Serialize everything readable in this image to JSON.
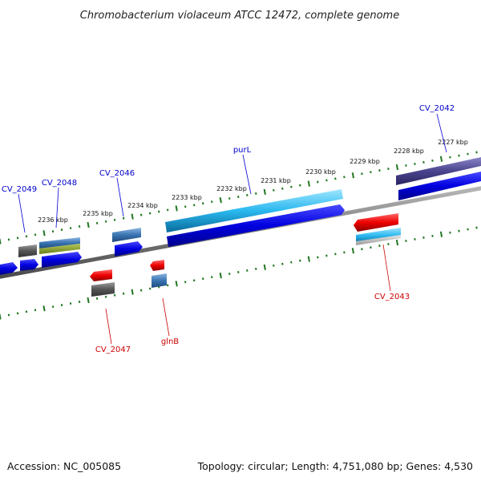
{
  "title": "Chromobacterium violaceum ATCC 12472, complete genome",
  "footer": {
    "accession": "Accession: NC_005085",
    "summary": "Topology: circular; Length: 4,751,080 bp; Genes: 4,530"
  },
  "colors": {
    "forward_label": "#0000cc",
    "reverse_label": "#cc0000",
    "tick": "#227722",
    "backbone": "#808080"
  },
  "ticks": [
    {
      "label": "2227 kbp"
    },
    {
      "label": "2228 kbp"
    },
    {
      "label": "2229 kbp"
    },
    {
      "label": "2230 kbp"
    },
    {
      "label": "2231 kbp"
    },
    {
      "label": "2232 kbp"
    },
    {
      "label": "2233 kbp"
    },
    {
      "label": "2234 kbp"
    },
    {
      "label": "2235 kbp"
    },
    {
      "label": "2236 kbp"
    }
  ],
  "gene_labels": [
    {
      "name": "CV_2042",
      "strand": "forward"
    },
    {
      "name": "purL",
      "strand": "forward"
    },
    {
      "name": "CV_2046",
      "strand": "forward"
    },
    {
      "name": "CV_2048",
      "strand": "forward"
    },
    {
      "name": "CV_2049",
      "strand": "forward"
    },
    {
      "name": "CV_2043",
      "strand": "reverse"
    },
    {
      "name": "CV_2047",
      "strand": "reverse"
    },
    {
      "name": "glnB",
      "strand": "reverse"
    }
  ]
}
